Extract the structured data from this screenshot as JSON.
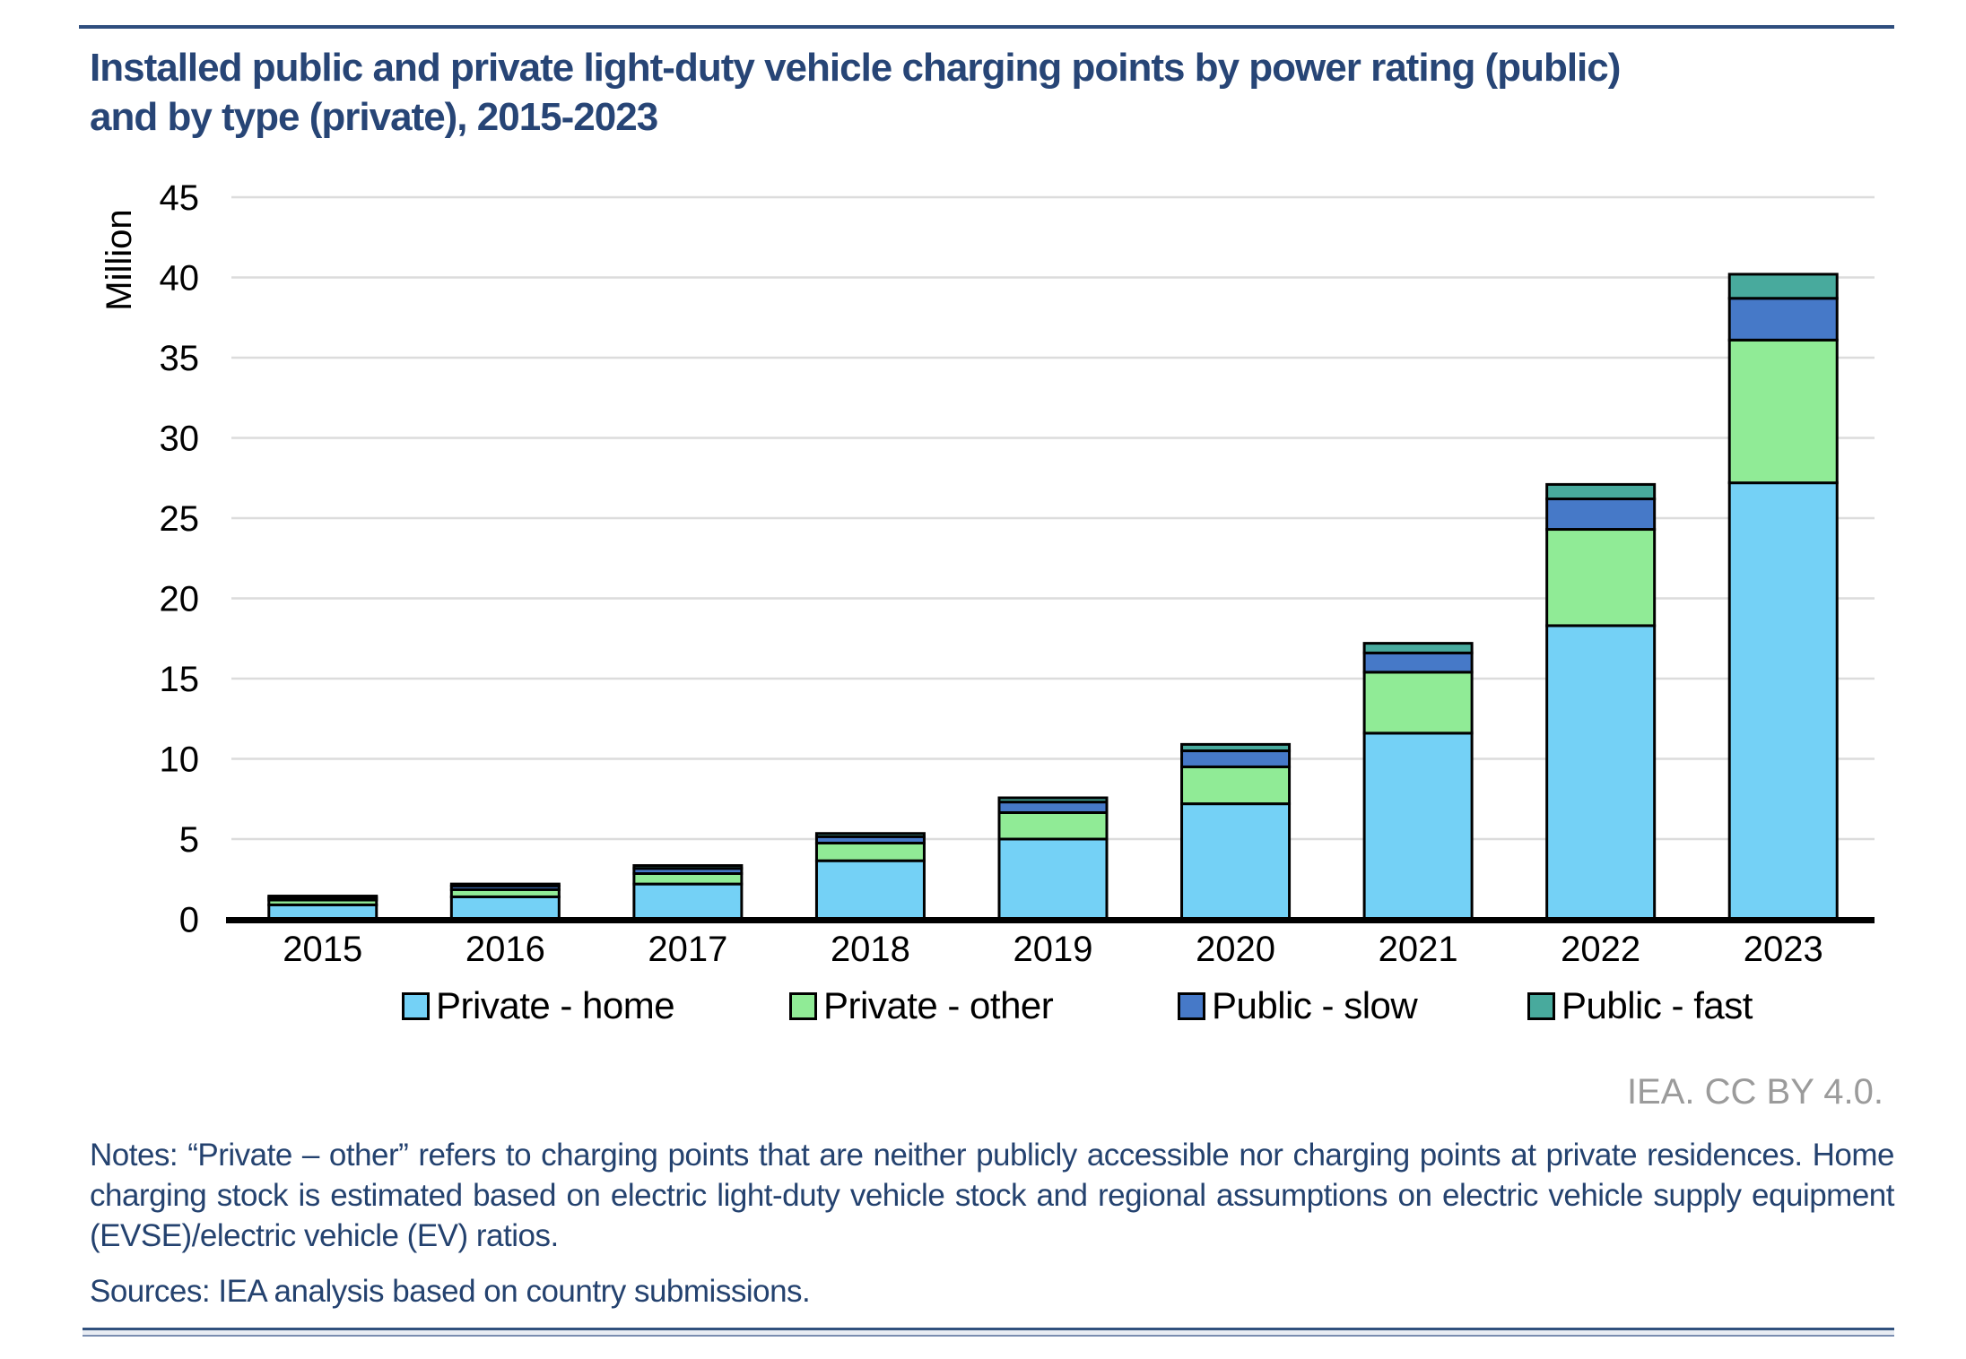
{
  "page": {
    "title_line1": "Installed public and private light-duty vehicle charging points by power rating (public)",
    "title_line2": "and by type (private), 2015-2023",
    "attribution": "IEA. CC BY 4.0.",
    "notes": "Notes: “Private – other” refers to charging points that are neither publicly accessible nor charging points at private residences. Home charging stock is estimated based on electric light-duty vehicle stock and regional assumptions on electric vehicle supply equipment (EVSE)/electric vehicle (EV) ratios.",
    "sources": "Sources: IEA analysis based on country submissions.",
    "accent_color": "#2F4E7E",
    "title_color": "#274576",
    "notes_color": "#24426F",
    "attribution_color": "#9B9B9B"
  },
  "chart_data": {
    "type": "bar",
    "stacked": true,
    "title": "Installed public and private light-duty vehicle charging points by power rating (public) and by type (private), 2015-2023",
    "xlabel": "",
    "ylabel": "Million",
    "ylim": [
      0,
      45
    ],
    "ytick_step": 5,
    "yticks": [
      0,
      5,
      10,
      15,
      20,
      25,
      30,
      35,
      40,
      45
    ],
    "grid": true,
    "gridline_color": "#DCDCDC",
    "axis_color": "#000000",
    "legend_position": "bottom",
    "categories": [
      "2015",
      "2016",
      "2017",
      "2018",
      "2019",
      "2020",
      "2021",
      "2022",
      "2023"
    ],
    "series": [
      {
        "name": "Private - home",
        "color": "#74D1F6",
        "values": [
          0.9,
          1.4,
          2.2,
          3.65,
          5.0,
          7.2,
          11.6,
          18.3,
          27.2
        ]
      },
      {
        "name": "Private - other",
        "color": "#90EB96",
        "values": [
          0.3,
          0.45,
          0.65,
          1.1,
          1.65,
          2.3,
          3.8,
          6.0,
          8.9
        ]
      },
      {
        "name": "Public - slow",
        "color": "#4679C8",
        "values": [
          0.16,
          0.23,
          0.32,
          0.4,
          0.66,
          1.0,
          1.2,
          1.9,
          2.6
        ]
      },
      {
        "name": "Public - fast",
        "color": "#48AA9D",
        "values": [
          0.09,
          0.12,
          0.18,
          0.2,
          0.26,
          0.4,
          0.6,
          0.9,
          1.5
        ]
      }
    ],
    "totals": [
      1.45,
      2.2,
      3.35,
      5.35,
      7.57,
      10.9,
      17.2,
      27.1,
      40.2
    ]
  }
}
